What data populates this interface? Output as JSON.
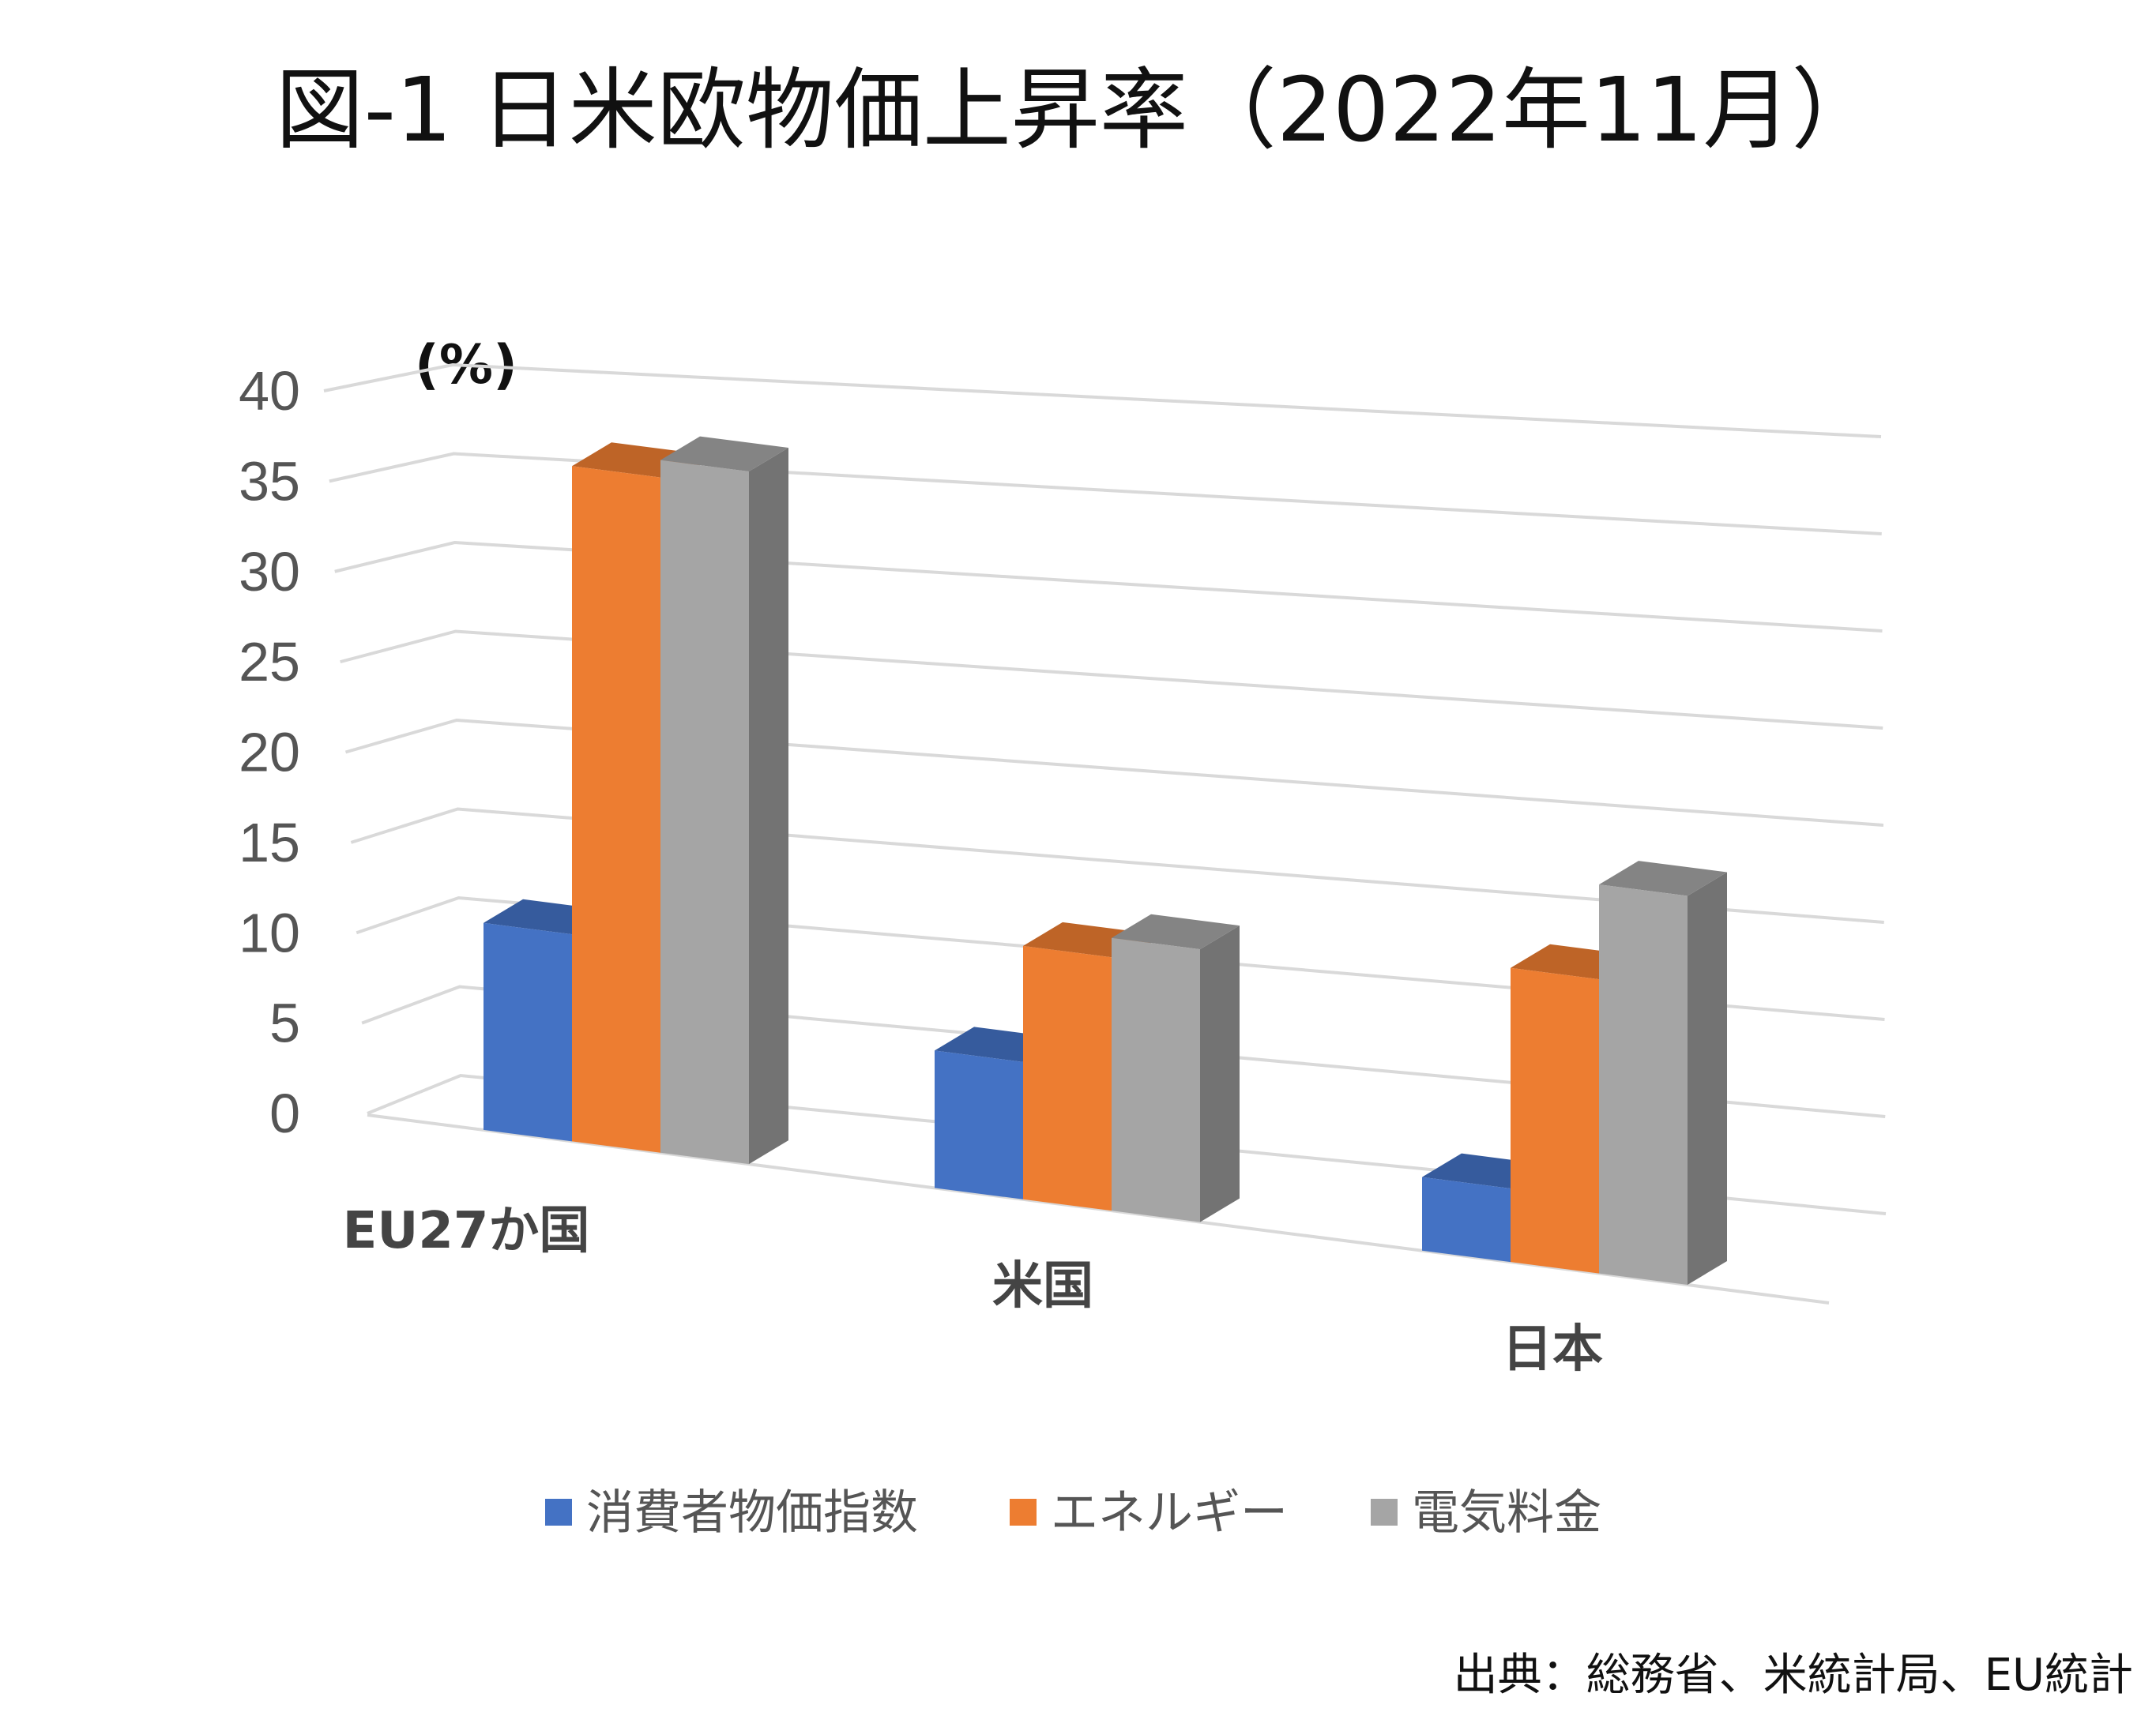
{
  "chart_data": {
    "type": "bar",
    "title": "図-1 日米欧物価上昇率（2022年11月）",
    "ylabel": "(%)",
    "ylim": [
      0,
      40
    ],
    "yticks": [
      "0",
      "5",
      "10",
      "15",
      "20",
      "25",
      "30",
      "35",
      "40"
    ],
    "categories": [
      "EU27か国",
      "米国",
      "日本"
    ],
    "series": [
      {
        "name": "消費者物価指数",
        "values": [
          10.7,
          7.1,
          3.8
        ],
        "color": "#4472C4"
      },
      {
        "name": "エネルギー",
        "values": [
          34.9,
          13.1,
          15.2
        ],
        "color": "#ED7D31"
      },
      {
        "name": "電気料金",
        "values": [
          35.8,
          14.1,
          20.1
        ],
        "color": "#A5A5A5"
      }
    ],
    "legend_position": "bottom",
    "grid": true,
    "style": "3d-clustered-column"
  },
  "source_note": "出典：総務省、米統計局、EU統計"
}
